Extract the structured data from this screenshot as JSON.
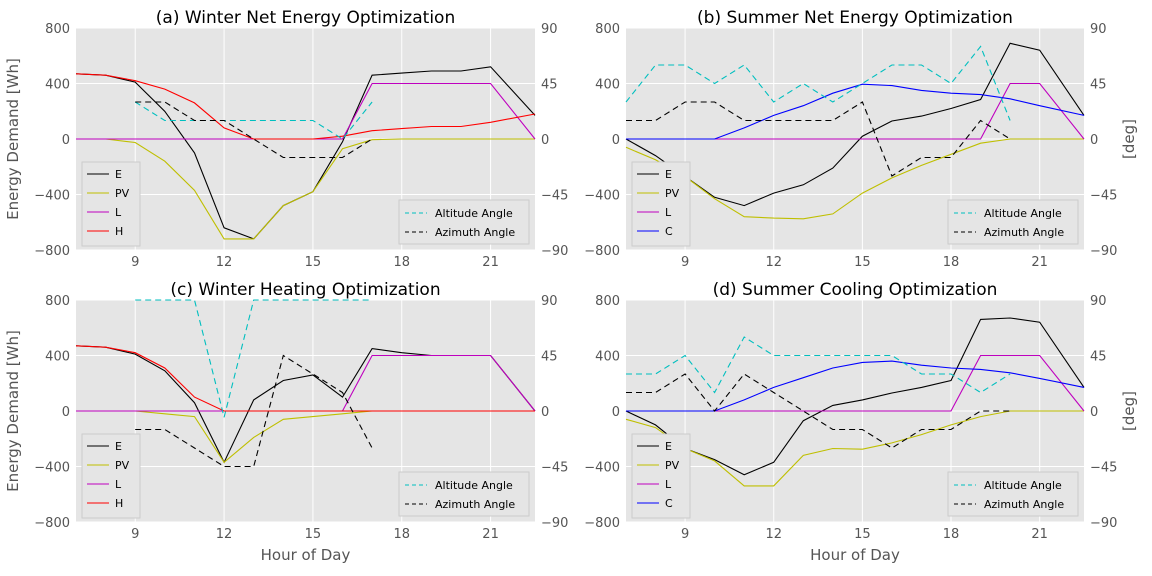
{
  "chart_data": [
    {
      "type": "line",
      "title": "(a) Winter Net Energy Optimization",
      "ylabel": "Energy Demand [Wh]",
      "y2label": "",
      "xlabel": "",
      "xlim": [
        7,
        22.5
      ],
      "ylim": [
        -800,
        800
      ],
      "y2lim": [
        -90,
        90
      ],
      "xticks": [
        "9",
        "12",
        "15",
        "18",
        "21"
      ],
      "yticks": [
        "800",
        "400",
        "0",
        "−400",
        "−800"
      ],
      "y2ticks": [
        "90",
        "45",
        "0",
        "−45",
        "−90"
      ],
      "series": [
        {
          "name": "E",
          "axis": "left",
          "color": "#000000",
          "dash": "",
          "x": [
            7,
            8,
            9,
            10,
            11,
            12,
            13,
            14,
            15,
            16,
            17,
            18,
            19,
            20,
            21,
            22.5
          ],
          "y": [
            470,
            460,
            410,
            200,
            -100,
            -640,
            -720,
            -480,
            -380,
            -20,
            460,
            475,
            490,
            490,
            520,
            170
          ]
        },
        {
          "name": "PV",
          "axis": "left",
          "color": "#bfbf00",
          "dash": "",
          "x": [
            7,
            8,
            9,
            10,
            11,
            12,
            13,
            14,
            15,
            16,
            17,
            18,
            19,
            20,
            21,
            22.5
          ],
          "y": [
            0,
            0,
            -25,
            -160,
            -370,
            -720,
            -720,
            -480,
            -380,
            -70,
            -5,
            0,
            0,
            0,
            0,
            0
          ]
        },
        {
          "name": "L",
          "axis": "left",
          "color": "#bf00bf",
          "dash": "",
          "x": [
            7,
            8,
            9,
            10,
            11,
            12,
            13,
            14,
            15,
            16,
            17,
            18,
            19,
            20,
            21,
            22.5
          ],
          "y": [
            0,
            0,
            0,
            0,
            0,
            0,
            0,
            0,
            0,
            0,
            400,
            400,
            400,
            400,
            400,
            0
          ]
        },
        {
          "name": "H",
          "axis": "left",
          "color": "#ff0000",
          "dash": "",
          "x": [
            7,
            8,
            9,
            10,
            11,
            12,
            13,
            14,
            15,
            16,
            17,
            18,
            19,
            20,
            21,
            22.5
          ],
          "y": [
            470,
            460,
            420,
            360,
            260,
            80,
            0,
            0,
            0,
            20,
            60,
            75,
            90,
            90,
            120,
            180
          ]
        },
        {
          "name": "Altitude Angle",
          "axis": "right",
          "color": "#00bfbf",
          "dash": "6,4",
          "x": [
            9,
            10,
            11,
            12,
            13,
            14,
            15,
            16,
            17
          ],
          "y": [
            30,
            15,
            15,
            15,
            15,
            15,
            15,
            0,
            30
          ]
        },
        {
          "name": "Azimuth Angle",
          "axis": "right",
          "color": "#000000",
          "dash": "6,4",
          "x": [
            9,
            10,
            11,
            12,
            13,
            14,
            15,
            16,
            17
          ],
          "y": [
            30,
            30,
            15,
            15,
            0,
            -15,
            -15,
            -15,
            0
          ]
        }
      ],
      "legend_left": [
        "E",
        "PV",
        "L",
        "H"
      ],
      "legend_right": [
        "Altitude Angle",
        "Azimuth Angle"
      ]
    },
    {
      "type": "line",
      "title": "(b) Summer Net Energy Optimization",
      "ylabel": "",
      "y2label": "[deg]",
      "xlabel": "",
      "xlim": [
        7,
        22.5
      ],
      "ylim": [
        -800,
        800
      ],
      "y2lim": [
        -90,
        90
      ],
      "xticks": [
        "9",
        "12",
        "15",
        "18",
        "21"
      ],
      "yticks": [
        "800",
        "400",
        "0",
        "−400",
        "−800"
      ],
      "y2ticks": [
        "90",
        "45",
        "0",
        "−45",
        "−90"
      ],
      "series": [
        {
          "name": "E",
          "axis": "left",
          "color": "#000000",
          "dash": "",
          "x": [
            7,
            8,
            9,
            10,
            11,
            12,
            13,
            14,
            15,
            16,
            17,
            18,
            19,
            20,
            21,
            22.5
          ],
          "y": [
            0,
            -120,
            -270,
            -420,
            -480,
            -390,
            -330,
            -210,
            20,
            130,
            165,
            220,
            285,
            690,
            640,
            170
          ]
        },
        {
          "name": "PV",
          "axis": "left",
          "color": "#bfbf00",
          "dash": "",
          "x": [
            7,
            8,
            9,
            10,
            11,
            12,
            13,
            14,
            15,
            16,
            17,
            18,
            19,
            20,
            21,
            22.5
          ],
          "y": [
            -60,
            -150,
            -270,
            -430,
            -560,
            -570,
            -575,
            -540,
            -390,
            -280,
            -190,
            -110,
            -30,
            0,
            0,
            0
          ]
        },
        {
          "name": "L",
          "axis": "left",
          "color": "#bf00bf",
          "dash": "",
          "x": [
            7,
            8,
            9,
            10,
            11,
            12,
            13,
            14,
            15,
            16,
            17,
            18,
            19,
            20,
            21,
            22.5
          ],
          "y": [
            0,
            0,
            0,
            0,
            0,
            0,
            0,
            0,
            0,
            0,
            0,
            0,
            0,
            400,
            400,
            0
          ]
        },
        {
          "name": "C",
          "axis": "left",
          "color": "#0000ff",
          "dash": "",
          "x": [
            7,
            8,
            9,
            10,
            11,
            12,
            13,
            14,
            15,
            16,
            17,
            18,
            19,
            20,
            21,
            22.5
          ],
          "y": [
            0,
            0,
            0,
            0,
            80,
            170,
            240,
            330,
            395,
            385,
            350,
            330,
            320,
            290,
            240,
            170
          ]
        },
        {
          "name": "Altitude Angle",
          "axis": "right",
          "color": "#00bfbf",
          "dash": "6,4",
          "x": [
            7,
            8,
            9,
            10,
            11,
            12,
            13,
            14,
            15,
            16,
            17,
            18,
            19,
            20
          ],
          "y": [
            30,
            60,
            60,
            45,
            60,
            30,
            45,
            30,
            45,
            60,
            60,
            45,
            75,
            15
          ]
        },
        {
          "name": "Azimuth Angle",
          "axis": "right",
          "color": "#000000",
          "dash": "6,4",
          "x": [
            7,
            8,
            9,
            10,
            11,
            12,
            13,
            14,
            15,
            16,
            17,
            18,
            19,
            20
          ],
          "y": [
            15,
            15,
            30,
            30,
            15,
            15,
            15,
            15,
            30,
            -30,
            -15,
            -15,
            15,
            0
          ]
        }
      ],
      "legend_left": [
        "E",
        "PV",
        "L",
        "C"
      ],
      "legend_right": [
        "Altitude Angle",
        "Azimuth Angle"
      ]
    },
    {
      "type": "line",
      "title": "(c) Winter Heating Optimization",
      "ylabel": "Energy Demand [Wh]",
      "y2label": "",
      "xlabel": "Hour of Day",
      "xlim": [
        7,
        22.5
      ],
      "ylim": [
        -800,
        800
      ],
      "y2lim": [
        -90,
        90
      ],
      "xticks": [
        "9",
        "12",
        "15",
        "18",
        "21"
      ],
      "yticks": [
        "800",
        "400",
        "0",
        "−400",
        "−800"
      ],
      "y2ticks": [
        "90",
        "45",
        "0",
        "−45",
        "−90"
      ],
      "series": [
        {
          "name": "E",
          "axis": "left",
          "color": "#000000",
          "dash": "",
          "x": [
            7,
            8,
            9,
            10,
            11,
            12,
            13,
            14,
            15,
            16,
            17,
            18,
            19,
            20,
            21,
            22.5
          ],
          "y": [
            470,
            460,
            410,
            290,
            60,
            -370,
            80,
            220,
            260,
            100,
            450,
            420,
            400,
            400,
            400,
            0
          ]
        },
        {
          "name": "PV",
          "axis": "left",
          "color": "#bfbf00",
          "dash": "",
          "x": [
            7,
            8,
            9,
            10,
            11,
            12,
            13,
            14,
            15,
            16,
            17,
            18,
            19,
            20,
            21,
            22.5
          ],
          "y": [
            0,
            0,
            0,
            -20,
            -40,
            -370,
            -190,
            -60,
            -40,
            -20,
            0,
            0,
            0,
            0,
            0,
            0
          ]
        },
        {
          "name": "L",
          "axis": "left",
          "color": "#bf00bf",
          "dash": "",
          "x": [
            7,
            8,
            9,
            10,
            11,
            12,
            13,
            14,
            15,
            16,
            17,
            18,
            19,
            20,
            21,
            22.5
          ],
          "y": [
            0,
            0,
            0,
            0,
            0,
            0,
            0,
            0,
            0,
            0,
            400,
            400,
            400,
            400,
            400,
            0
          ]
        },
        {
          "name": "H",
          "axis": "left",
          "color": "#ff0000",
          "dash": "",
          "x": [
            7,
            8,
            9,
            10,
            11,
            12,
            13,
            14,
            15,
            16,
            17,
            18,
            19,
            20,
            21,
            22.5
          ],
          "y": [
            470,
            460,
            420,
            310,
            100,
            0,
            0,
            0,
            0,
            0,
            0,
            0,
            0,
            0,
            0,
            0
          ]
        },
        {
          "name": "Altitude Angle",
          "axis": "right",
          "color": "#00bfbf",
          "dash": "6,4",
          "x": [
            9,
            10,
            11,
            12,
            13,
            14,
            15,
            16,
            17
          ],
          "y": [
            90,
            90,
            90,
            -5,
            90,
            90,
            90,
            90,
            90
          ]
        },
        {
          "name": "Azimuth Angle",
          "axis": "right",
          "color": "#000000",
          "dash": "6,4",
          "x": [
            9,
            10,
            11,
            12,
            13,
            14,
            15,
            16,
            17
          ],
          "y": [
            -15,
            -15,
            -30,
            -45,
            -45,
            45,
            30,
            15,
            -30
          ]
        }
      ],
      "legend_left": [
        "E",
        "PV",
        "L",
        "H"
      ],
      "legend_right": [
        "Altitude Angle",
        "Azimuth Angle"
      ]
    },
    {
      "type": "line",
      "title": "(d) Summer Cooling Optimization",
      "ylabel": "",
      "y2label": "[deg]",
      "xlabel": "Hour of Day",
      "xlim": [
        7,
        22.5
      ],
      "ylim": [
        -800,
        800
      ],
      "y2lim": [
        -90,
        90
      ],
      "xticks": [
        "9",
        "12",
        "15",
        "18",
        "21"
      ],
      "yticks": [
        "800",
        "400",
        "0",
        "−400",
        "−800"
      ],
      "y2ticks": [
        "90",
        "45",
        "0",
        "−45",
        "−90"
      ],
      "series": [
        {
          "name": "E",
          "axis": "left",
          "color": "#000000",
          "dash": "",
          "x": [
            7,
            8,
            9,
            10,
            11,
            12,
            13,
            14,
            15,
            16,
            17,
            18,
            19,
            20,
            21,
            22.5
          ],
          "y": [
            0,
            -100,
            -270,
            -350,
            -460,
            -370,
            -70,
            40,
            80,
            130,
            170,
            220,
            660,
            670,
            640,
            170
          ]
        },
        {
          "name": "PV",
          "axis": "left",
          "color": "#bfbf00",
          "dash": "",
          "x": [
            7,
            8,
            9,
            10,
            11,
            12,
            13,
            14,
            15,
            16,
            17,
            18,
            19,
            20,
            21,
            22.5
          ],
          "y": [
            -60,
            -120,
            -270,
            -360,
            -540,
            -540,
            -320,
            -270,
            -275,
            -230,
            -170,
            -100,
            -40,
            0,
            0,
            0
          ]
        },
        {
          "name": "L",
          "axis": "left",
          "color": "#bf00bf",
          "dash": "",
          "x": [
            7,
            8,
            9,
            10,
            11,
            12,
            13,
            14,
            15,
            16,
            17,
            18,
            19,
            20,
            21,
            22.5
          ],
          "y": [
            0,
            0,
            0,
            0,
            0,
            0,
            0,
            0,
            0,
            0,
            0,
            0,
            400,
            400,
            400,
            0
          ]
        },
        {
          "name": "C",
          "axis": "left",
          "color": "#0000ff",
          "dash": "",
          "x": [
            7,
            8,
            9,
            10,
            11,
            12,
            13,
            14,
            15,
            16,
            17,
            18,
            19,
            20,
            21,
            22.5
          ],
          "y": [
            0,
            0,
            0,
            0,
            80,
            170,
            240,
            310,
            350,
            360,
            330,
            310,
            300,
            275,
            235,
            170
          ]
        },
        {
          "name": "Altitude Angle",
          "axis": "right",
          "color": "#00bfbf",
          "dash": "6,4",
          "x": [
            7,
            8,
            9,
            10,
            11,
            12,
            13,
            14,
            15,
            16,
            17,
            18,
            19,
            20
          ],
          "y": [
            30,
            30,
            45,
            15,
            60,
            45,
            45,
            45,
            45,
            45,
            30,
            30,
            15,
            30
          ]
        },
        {
          "name": "Azimuth Angle",
          "axis": "right",
          "color": "#000000",
          "dash": "6,4",
          "x": [
            7,
            8,
            9,
            10,
            11,
            12,
            13,
            14,
            15,
            16,
            17,
            18,
            19,
            20
          ],
          "y": [
            15,
            15,
            30,
            0,
            30,
            15,
            0,
            -15,
            -15,
            -30,
            -15,
            -15,
            0,
            0
          ]
        }
      ],
      "legend_left": [
        "E",
        "PV",
        "L",
        "C"
      ],
      "legend_right": [
        "Altitude Angle",
        "Azimuth Angle"
      ]
    }
  ]
}
